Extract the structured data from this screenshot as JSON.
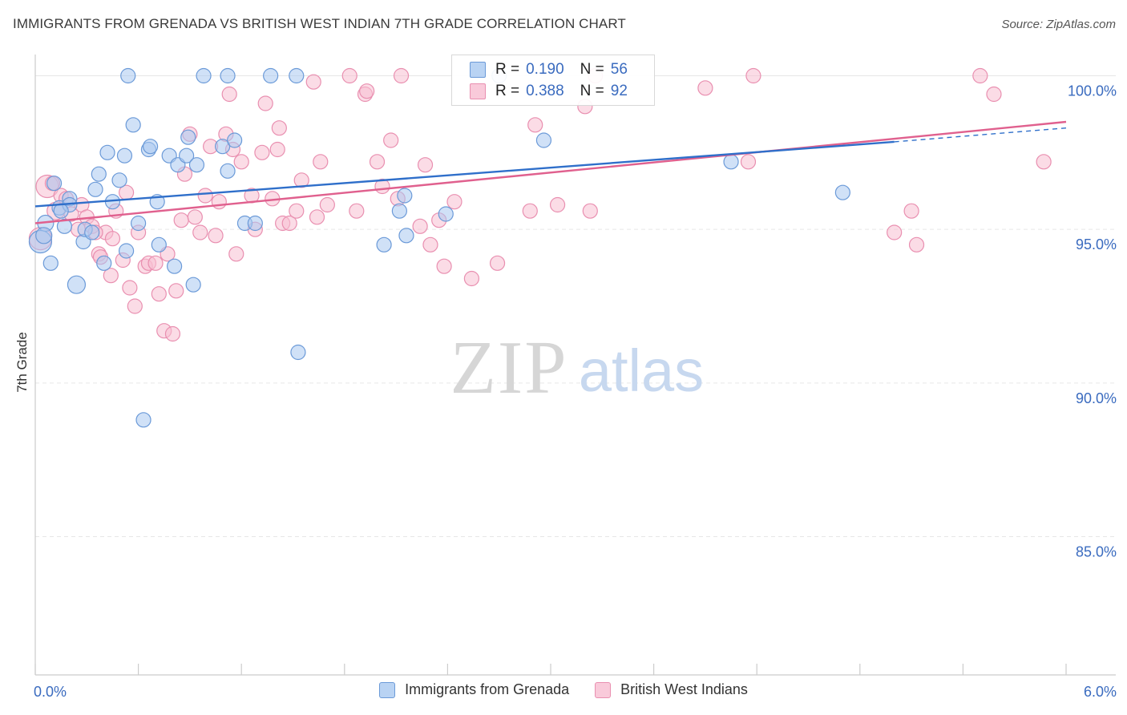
{
  "title": "IMMIGRANTS FROM GRENADA VS BRITISH WEST INDIAN 7TH GRADE CORRELATION CHART",
  "source": "Source: ZipAtlas.com",
  "watermark": {
    "zip": "ZIP",
    "atlas": "atlas"
  },
  "legend_top": [
    {
      "r_label": "R =",
      "r_value": "0.190",
      "n_label": "N =",
      "n_value": "56"
    },
    {
      "r_label": "R =",
      "r_value": "0.388",
      "n_label": "N =",
      "n_value": "92"
    }
  ],
  "colors": {
    "blue_fill": "#a9c8f0",
    "blue_stroke": "#6b9ad8",
    "blue_line": "#2f6fca",
    "pink_fill": "#f7bfd2",
    "pink_stroke": "#e98fb0",
    "pink_line": "#e0608e",
    "tick_label": "#3a6bbf",
    "grid": "#e6e6e6"
  },
  "chart_data": {
    "type": "scatter",
    "xlabel": "",
    "ylabel": "7th Grade",
    "xlim": [
      0.0,
      6.0
    ],
    "ylim": [
      80.5,
      100.9
    ],
    "x_tick_labels": [
      "0.0%",
      "6.0%"
    ],
    "y_ticks": [
      85.0,
      90.0,
      95.0,
      100.0
    ],
    "y_tick_labels": [
      "85.0%",
      "90.0%",
      "95.0%",
      "100.0%"
    ],
    "grid": true,
    "legend_position": "bottom",
    "series": [
      {
        "name": "Immigrants from Grenada",
        "trend": {
          "x": [
            0.0,
            5.0
          ],
          "y": [
            95.75,
            97.85
          ],
          "dashed_extension": {
            "x": [
              5.0,
              6.0
            ],
            "y": [
              97.85,
              98.3
            ]
          }
        },
        "points": [
          [
            0.03,
            94.6,
            14
          ],
          [
            0.06,
            95.2,
            10
          ],
          [
            0.05,
            94.8,
            10
          ],
          [
            0.09,
            93.9,
            9
          ],
          [
            0.11,
            96.5,
            9
          ],
          [
            0.14,
            95.7,
            9
          ],
          [
            0.17,
            95.1,
            9
          ],
          [
            0.2,
            96.0,
            9
          ],
          [
            0.2,
            95.8,
            9
          ],
          [
            0.24,
            93.2,
            11
          ],
          [
            0.28,
            94.6,
            9
          ],
          [
            0.29,
            95.0,
            9
          ],
          [
            0.33,
            94.9,
            9
          ],
          [
            0.35,
            96.3,
            9
          ],
          [
            0.37,
            96.8,
            9
          ],
          [
            0.4,
            93.9,
            9
          ],
          [
            0.42,
            97.5,
            9
          ],
          [
            0.45,
            95.9,
            9
          ],
          [
            0.49,
            96.6,
            9
          ],
          [
            0.52,
            97.4,
            9
          ],
          [
            0.53,
            94.3,
            9
          ],
          [
            0.57,
            98.4,
            9
          ],
          [
            0.6,
            95.2,
            9
          ],
          [
            0.63,
            88.8,
            9
          ],
          [
            0.66,
            97.6,
            9
          ],
          [
            0.67,
            97.7,
            9
          ],
          [
            0.71,
            95.9,
            9
          ],
          [
            0.72,
            94.5,
            9
          ],
          [
            0.78,
            97.4,
            9
          ],
          [
            0.81,
            93.8,
            9
          ],
          [
            0.83,
            97.1,
            9
          ],
          [
            0.88,
            97.4,
            9
          ],
          [
            0.89,
            98.0,
            9
          ],
          [
            0.92,
            93.2,
            9
          ],
          [
            0.94,
            97.1,
            9
          ],
          [
            0.54,
            100.0,
            9
          ],
          [
            0.98,
            100.0,
            9
          ],
          [
            1.12,
            100.0,
            9
          ],
          [
            1.37,
            100.0,
            9
          ],
          [
            1.52,
            100.0,
            9
          ],
          [
            1.09,
            97.7,
            9
          ],
          [
            1.12,
            96.9,
            9
          ],
          [
            1.16,
            97.9,
            9
          ],
          [
            1.22,
            95.2,
            9
          ],
          [
            1.28,
            95.2,
            9
          ],
          [
            1.53,
            91.0,
            9
          ],
          [
            2.03,
            94.5,
            9
          ],
          [
            2.12,
            95.6,
            9
          ],
          [
            2.15,
            96.1,
            9
          ],
          [
            2.16,
            94.8,
            9
          ],
          [
            2.39,
            95.5,
            9
          ],
          [
            2.7,
            100.0,
            9
          ],
          [
            2.96,
            97.9,
            9
          ],
          [
            4.05,
            97.2,
            9
          ],
          [
            4.7,
            96.2,
            9
          ],
          [
            0.15,
            95.6,
            9
          ]
        ]
      },
      {
        "name": "British West Indians",
        "trend": {
          "x": [
            0.0,
            6.0
          ],
          "y": [
            95.2,
            98.5
          ]
        },
        "points": [
          [
            0.03,
            94.7,
            14
          ],
          [
            0.07,
            96.4,
            14
          ],
          [
            0.12,
            95.6,
            11
          ],
          [
            0.15,
            96.1,
            9
          ],
          [
            0.18,
            96.0,
            9
          ],
          [
            0.21,
            95.5,
            9
          ],
          [
            0.25,
            95.0,
            9
          ],
          [
            0.27,
            95.8,
            9
          ],
          [
            0.3,
            95.4,
            9
          ],
          [
            0.33,
            95.1,
            9
          ],
          [
            0.37,
            94.2,
            9
          ],
          [
            0.38,
            94.1,
            9
          ],
          [
            0.41,
            94.9,
            9
          ],
          [
            0.44,
            93.5,
            9
          ],
          [
            0.47,
            95.6,
            9
          ],
          [
            0.51,
            94.0,
            9
          ],
          [
            0.53,
            96.2,
            9
          ],
          [
            0.55,
            93.1,
            9
          ],
          [
            0.58,
            92.5,
            9
          ],
          [
            0.6,
            94.9,
            9
          ],
          [
            0.64,
            93.8,
            9
          ],
          [
            0.66,
            93.9,
            9
          ],
          [
            0.7,
            93.9,
            9
          ],
          [
            0.72,
            92.9,
            9
          ],
          [
            0.75,
            91.7,
            9
          ],
          [
            0.77,
            94.2,
            9
          ],
          [
            0.8,
            91.6,
            9
          ],
          [
            0.82,
            93.0,
            9
          ],
          [
            0.85,
            95.3,
            9
          ],
          [
            0.87,
            96.8,
            9
          ],
          [
            0.9,
            98.1,
            9
          ],
          [
            0.93,
            95.4,
            9
          ],
          [
            0.96,
            94.9,
            9
          ],
          [
            0.99,
            96.1,
            9
          ],
          [
            1.02,
            97.7,
            9
          ],
          [
            1.05,
            94.8,
            9
          ],
          [
            1.07,
            95.9,
            9
          ],
          [
            1.11,
            98.1,
            9
          ],
          [
            1.13,
            99.4,
            9
          ],
          [
            1.15,
            97.6,
            9
          ],
          [
            1.17,
            94.2,
            9
          ],
          [
            1.2,
            97.2,
            9
          ],
          [
            1.26,
            96.1,
            9
          ],
          [
            1.28,
            95.0,
            9
          ],
          [
            1.32,
            97.5,
            9
          ],
          [
            1.34,
            99.1,
            9
          ],
          [
            1.38,
            96.0,
            9
          ],
          [
            1.41,
            97.6,
            9
          ],
          [
            1.42,
            98.3,
            9
          ],
          [
            1.44,
            95.2,
            9
          ],
          [
            1.48,
            95.2,
            9
          ],
          [
            1.52,
            95.6,
            9
          ],
          [
            1.55,
            96.6,
            9
          ],
          [
            1.62,
            99.8,
            9
          ],
          [
            1.64,
            95.4,
            9
          ],
          [
            1.66,
            97.2,
            9
          ],
          [
            1.7,
            95.8,
            9
          ],
          [
            1.83,
            100.0,
            9
          ],
          [
            1.87,
            95.6,
            9
          ],
          [
            1.92,
            99.4,
            9
          ],
          [
            1.93,
            99.5,
            9
          ],
          [
            1.99,
            97.2,
            9
          ],
          [
            2.02,
            96.4,
            9
          ],
          [
            2.07,
            97.9,
            9
          ],
          [
            2.11,
            96.0,
            9
          ],
          [
            2.13,
            100.0,
            9
          ],
          [
            2.24,
            95.1,
            9
          ],
          [
            2.27,
            97.1,
            9
          ],
          [
            2.3,
            94.5,
            9
          ],
          [
            2.35,
            95.3,
            9
          ],
          [
            2.38,
            93.8,
            9
          ],
          [
            2.44,
            95.9,
            9
          ],
          [
            2.54,
            93.4,
            9
          ],
          [
            2.69,
            93.9,
            9
          ],
          [
            2.88,
            95.6,
            9
          ],
          [
            2.91,
            98.4,
            9
          ],
          [
            3.04,
            95.8,
            9
          ],
          [
            3.2,
            99.0,
            9
          ],
          [
            3.23,
            95.6,
            9
          ],
          [
            3.26,
            100.0,
            9
          ],
          [
            3.9,
            99.6,
            9
          ],
          [
            4.15,
            97.2,
            9
          ],
          [
            4.18,
            100.0,
            9
          ],
          [
            5.0,
            94.9,
            9
          ],
          [
            5.1,
            95.6,
            9
          ],
          [
            5.13,
            94.5,
            9
          ],
          [
            5.5,
            100.0,
            9
          ],
          [
            5.58,
            99.4,
            9
          ],
          [
            5.87,
            97.2,
            9
          ],
          [
            0.1,
            96.5,
            9
          ],
          [
            0.35,
            94.9,
            9
          ],
          [
            0.45,
            94.7,
            9
          ]
        ]
      }
    ]
  }
}
